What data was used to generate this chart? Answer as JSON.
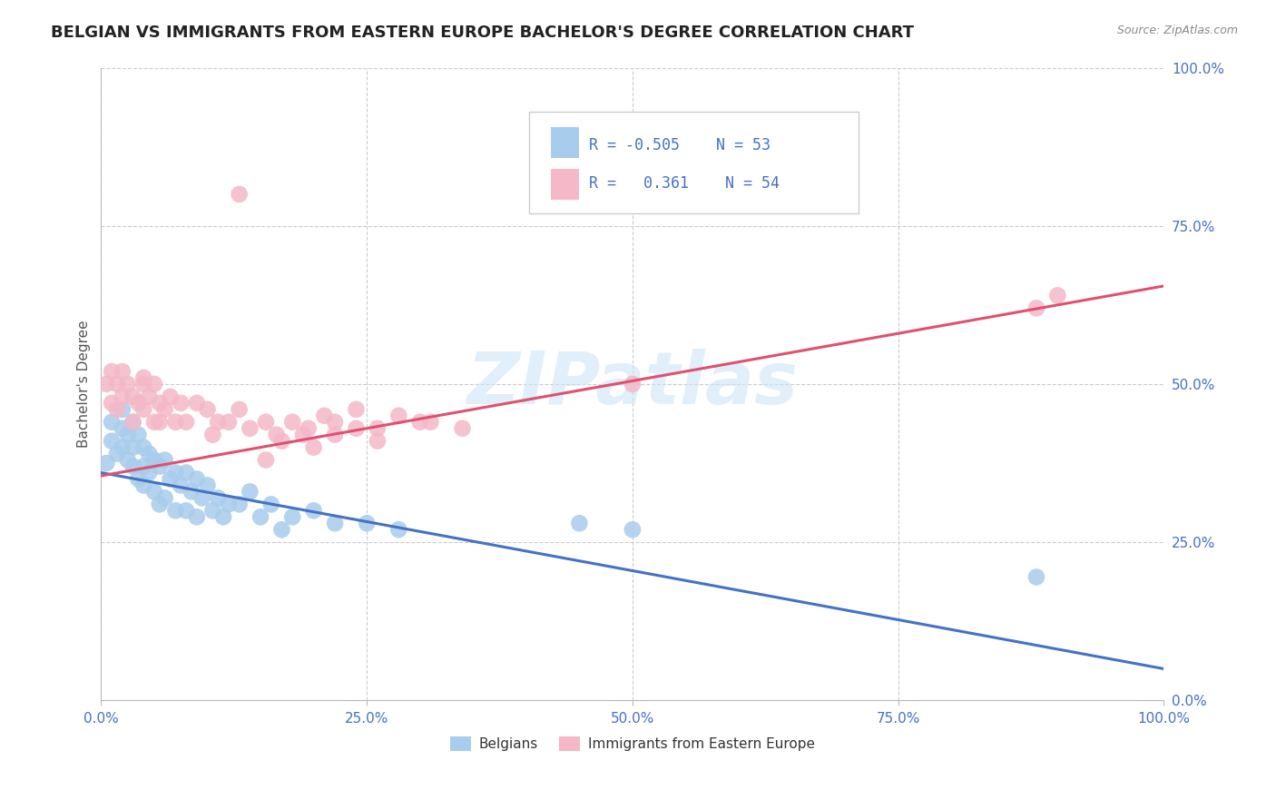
{
  "title": "BELGIAN VS IMMIGRANTS FROM EASTERN EUROPE BACHELOR'S DEGREE CORRELATION CHART",
  "source": "Source: ZipAtlas.com",
  "ylabel": "Bachelor's Degree",
  "xlim": [
    0.0,
    1.0
  ],
  "ylim": [
    0.0,
    1.0
  ],
  "xticks": [
    0.0,
    0.25,
    0.5,
    0.75,
    1.0
  ],
  "xtick_labels": [
    "0.0%",
    "25.0%",
    "50.0%",
    "75.0%",
    "100.0%"
  ],
  "ytick_labels_right": [
    "0.0%",
    "25.0%",
    "50.0%",
    "75.0%",
    "100.0%"
  ],
  "blue_color": "#a8ccec",
  "pink_color": "#f4b8c8",
  "blue_line_color": "#4472c4",
  "pink_line_color": "#e05070",
  "text_color": "#4472c4",
  "watermark": "ZIPatlas",
  "legend_R_blue": "-0.505",
  "legend_N_blue": "53",
  "legend_R_pink": "0.361",
  "legend_N_pink": "54",
  "legend_label_blue": "Belgians",
  "legend_label_pink": "Immigrants from Eastern Europe",
  "title_fontsize": 13,
  "axis_label_fontsize": 11,
  "tick_fontsize": 11,
  "blue_x": [
    0.005,
    0.01,
    0.01,
    0.015,
    0.02,
    0.02,
    0.02,
    0.025,
    0.025,
    0.03,
    0.03,
    0.03,
    0.035,
    0.035,
    0.04,
    0.04,
    0.04,
    0.045,
    0.045,
    0.05,
    0.05,
    0.055,
    0.055,
    0.06,
    0.06,
    0.065,
    0.07,
    0.07,
    0.075,
    0.08,
    0.08,
    0.085,
    0.09,
    0.09,
    0.095,
    0.1,
    0.105,
    0.11,
    0.115,
    0.12,
    0.13,
    0.14,
    0.15,
    0.16,
    0.17,
    0.18,
    0.2,
    0.22,
    0.25,
    0.28,
    0.45,
    0.5,
    0.88
  ],
  "blue_y": [
    0.375,
    0.44,
    0.41,
    0.39,
    0.46,
    0.43,
    0.4,
    0.42,
    0.38,
    0.44,
    0.4,
    0.37,
    0.42,
    0.35,
    0.4,
    0.37,
    0.34,
    0.39,
    0.36,
    0.38,
    0.33,
    0.37,
    0.31,
    0.38,
    0.32,
    0.35,
    0.36,
    0.3,
    0.34,
    0.36,
    0.3,
    0.33,
    0.35,
    0.29,
    0.32,
    0.34,
    0.3,
    0.32,
    0.29,
    0.31,
    0.31,
    0.33,
    0.29,
    0.31,
    0.27,
    0.29,
    0.3,
    0.28,
    0.28,
    0.27,
    0.28,
    0.27,
    0.195
  ],
  "pink_x": [
    0.005,
    0.01,
    0.01,
    0.015,
    0.015,
    0.02,
    0.02,
    0.025,
    0.03,
    0.03,
    0.035,
    0.04,
    0.04,
    0.04,
    0.045,
    0.05,
    0.05,
    0.055,
    0.055,
    0.06,
    0.065,
    0.07,
    0.075,
    0.08,
    0.09,
    0.1,
    0.105,
    0.11,
    0.12,
    0.13,
    0.14,
    0.155,
    0.165,
    0.18,
    0.195,
    0.21,
    0.22,
    0.24,
    0.26,
    0.28,
    0.3,
    0.155,
    0.17,
    0.19,
    0.2,
    0.22,
    0.24,
    0.26,
    0.31,
    0.34,
    0.9,
    0.88,
    0.5,
    0.13
  ],
  "pink_y": [
    0.5,
    0.52,
    0.47,
    0.5,
    0.46,
    0.52,
    0.48,
    0.5,
    0.48,
    0.44,
    0.47,
    0.51,
    0.46,
    0.5,
    0.48,
    0.5,
    0.44,
    0.47,
    0.44,
    0.46,
    0.48,
    0.44,
    0.47,
    0.44,
    0.47,
    0.46,
    0.42,
    0.44,
    0.44,
    0.46,
    0.43,
    0.44,
    0.42,
    0.44,
    0.43,
    0.45,
    0.44,
    0.46,
    0.43,
    0.45,
    0.44,
    0.38,
    0.41,
    0.42,
    0.4,
    0.42,
    0.43,
    0.41,
    0.44,
    0.43,
    0.64,
    0.62,
    0.5,
    0.8
  ],
  "blue_trend_x": [
    0.0,
    1.0
  ],
  "blue_trend_y": [
    0.36,
    0.05
  ],
  "pink_trend_x": [
    0.0,
    1.0
  ],
  "pink_trend_y": [
    0.355,
    0.655
  ]
}
